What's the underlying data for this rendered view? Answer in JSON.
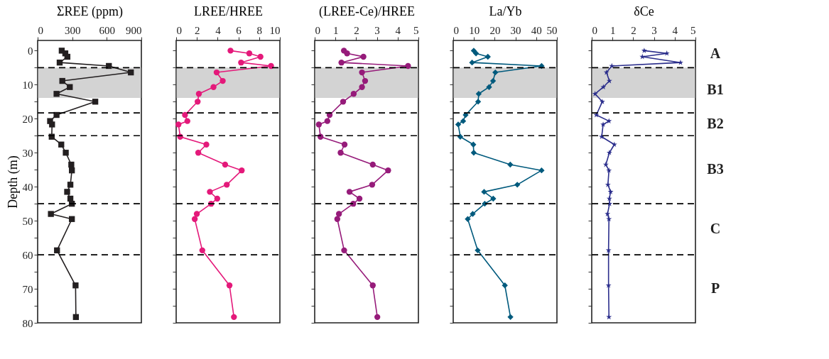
{
  "chart_data": [
    {
      "type": "line",
      "xlabel": "ΣREE (ppm)",
      "ylabel": "Depth (m)",
      "marker": "square",
      "grid": false,
      "xlim": [
        0,
        900
      ],
      "xticks": [
        0,
        300,
        600,
        900
      ],
      "ylim": [
        80,
        -3
      ],
      "yticks": [
        0,
        {
          "value": 5,
          "label": null
        },
        10,
        {
          "value": 15,
          "label": null
        },
        20,
        {
          "value": 25,
          "label": null
        },
        30,
        {
          "value": 35,
          "label": null
        },
        40,
        {
          "value": 45,
          "label": null
        },
        50,
        {
          "value": 55,
          "label": null
        },
        60,
        {
          "value": 65,
          "label": null
        },
        70,
        {
          "value": 75,
          "label": null
        },
        80
      ],
      "series": [
        {
          "color": "#231f20",
          "x": [
            209,
            240,
            258,
            191,
            618,
            809,
            214,
            279,
            164,
            500,
            164,
            108,
            125,
            122,
            205,
            244,
            292,
            297,
            284,
            256,
            284,
            297,
            115,
            297,
            168,
            329,
            332
          ],
          "values": [
            0,
            0.8,
            1.8,
            3.5,
            4.5,
            6.4,
            8.9,
            10.7,
            12.7,
            15,
            18.9,
            20.7,
            21.7,
            25.3,
            27.6,
            30,
            33.5,
            35.2,
            39.4,
            41.5,
            43.5,
            45,
            48,
            49.5,
            58.7,
            69,
            78.3
          ]
        }
      ],
      "ref_lines": [
        {
          "axis": "y",
          "value": 5,
          "line_style": "dashed"
        },
        {
          "axis": "y",
          "value": 18.3,
          "line_style": "dashed"
        },
        {
          "axis": "y",
          "value": 25,
          "line_style": "dashed"
        },
        {
          "axis": "y",
          "value": 45,
          "line_style": "dashed"
        },
        {
          "axis": "y",
          "value": 60,
          "line_style": "dashed"
        }
      ],
      "bands": [
        {
          "axis": "y",
          "from": 5,
          "to": 13.9,
          "color": "#a8a8a8"
        }
      ]
    },
    {
      "type": "line",
      "xlabel": "LREE/HREE",
      "marker": "circle",
      "grid": false,
      "tick_labels": "x",
      "xlim": [
        0,
        10
      ],
      "xticks": [
        0,
        2,
        4,
        6,
        8,
        10
      ],
      "ylim": [
        80,
        -3
      ],
      "yticks": [
        0,
        {
          "value": 5,
          "label": null
        },
        10,
        {
          "value": 15,
          "label": null
        },
        20,
        {
          "value": 25,
          "label": null
        },
        30,
        {
          "value": 35,
          "label": null
        },
        40,
        {
          "value": 45,
          "label": null
        },
        50,
        {
          "value": 55,
          "label": null
        },
        60,
        {
          "value": 65,
          "label": null
        },
        70,
        {
          "value": 75,
          "label": null
        },
        80
      ],
      "series": [
        {
          "color": "#e4197a",
          "x": [
            5.24,
            7.05,
            8.13,
            6.26,
            9.15,
            3.9,
            4.49,
            3.6,
            2.19,
            2.07,
            0.85,
            1.08,
            0.22,
            0.39,
            2.91,
            2.13,
            4.72,
            6.32,
            4.88,
            3.25,
            3.96,
            3.37,
            1.99,
            1.79,
            2.52,
            5.14,
            5.57
          ],
          "values": [
            0,
            0.8,
            1.8,
            3.5,
            4.5,
            6.4,
            8.9,
            10.7,
            12.7,
            15,
            18.9,
            20.7,
            21.7,
            25.3,
            27.6,
            30,
            33.5,
            35.2,
            39.4,
            41.5,
            43.5,
            45,
            48,
            49.5,
            58.7,
            69,
            78.3
          ]
        }
      ],
      "ref_lines": [
        {
          "axis": "y",
          "value": 5,
          "line_style": "dashed"
        },
        {
          "axis": "y",
          "value": 18.3,
          "line_style": "dashed"
        },
        {
          "axis": "y",
          "value": 25,
          "line_style": "dashed"
        },
        {
          "axis": "y",
          "value": 45,
          "line_style": "dashed"
        },
        {
          "axis": "y",
          "value": 60,
          "line_style": "dashed"
        }
      ],
      "bands": [
        {
          "axis": "y",
          "from": 5,
          "to": 13.9,
          "color": "#a8a8a8"
        }
      ]
    },
    {
      "type": "line",
      "xlabel": "(LREE-Ce)/HREE",
      "marker": "circle",
      "grid": false,
      "tick_labels": "x",
      "xlim": [
        0,
        5
      ],
      "xticks": [
        0,
        1,
        2,
        3,
        4,
        5
      ],
      "ylim": [
        80,
        -3
      ],
      "yticks": [
        0,
        {
          "value": 5,
          "label": null
        },
        10,
        {
          "value": 15,
          "label": null
        },
        20,
        {
          "value": 25,
          "label": null
        },
        30,
        {
          "value": 35,
          "label": null
        },
        40,
        {
          "value": 45,
          "label": null
        },
        50,
        {
          "value": 55,
          "label": null
        },
        60,
        {
          "value": 65,
          "label": null
        },
        70,
        {
          "value": 75,
          "label": null
        },
        80
      ],
      "series": [
        {
          "color": "#961b7a",
          "x": [
            1.41,
            1.56,
            2.35,
            1.29,
            4.5,
            2.28,
            2.43,
            2.28,
            1.88,
            1.37,
            0.72,
            0.61,
            0.2,
            0.28,
            1.44,
            1.25,
            2.8,
            3.54,
            2.77,
            1.68,
            2.16,
            1.86,
            1.17,
            1.09,
            1.42,
            2.8,
            3.02
          ],
          "values": [
            0,
            0.8,
            1.8,
            3.5,
            4.5,
            6.4,
            8.9,
            10.7,
            12.7,
            15,
            18.9,
            20.7,
            21.7,
            25.3,
            27.6,
            30,
            33.5,
            35.2,
            39.4,
            41.5,
            43.5,
            45,
            48,
            49.5,
            58.7,
            69,
            78.3
          ]
        }
      ],
      "ref_lines": [
        {
          "axis": "y",
          "value": 5,
          "line_style": "dashed"
        },
        {
          "axis": "y",
          "value": 18.3,
          "line_style": "dashed"
        },
        {
          "axis": "y",
          "value": 25,
          "line_style": "dashed"
        },
        {
          "axis": "y",
          "value": 45,
          "line_style": "dashed"
        },
        {
          "axis": "y",
          "value": 60,
          "line_style": "dashed"
        }
      ],
      "bands": [
        {
          "axis": "y",
          "from": 5,
          "to": 13.9,
          "color": "#a8a8a8"
        }
      ]
    },
    {
      "type": "line",
      "xlabel": "La/Yb",
      "marker": "diamond",
      "grid": false,
      "tick_labels": "x",
      "xlim": [
        0,
        50
      ],
      "xticks": [
        0,
        10,
        20,
        30,
        40,
        50
      ],
      "ylim": [
        80,
        -3
      ],
      "yticks": [
        0,
        {
          "value": 5,
          "label": null
        },
        10,
        {
          "value": 15,
          "label": null
        },
        20,
        {
          "value": 25,
          "label": null
        },
        30,
        {
          "value": 35,
          "label": null
        },
        40,
        {
          "value": 45,
          "label": null
        },
        50,
        {
          "value": 55,
          "label": null
        },
        60,
        {
          "value": 65,
          "label": null
        },
        70,
        {
          "value": 75,
          "label": null
        },
        80
      ],
      "series": [
        {
          "color": "#005a7d",
          "x": [
            9.9,
            11.0,
            16.7,
            9.1,
            42.6,
            20.3,
            19.2,
            17.3,
            12.3,
            12.0,
            6.0,
            4.8,
            2.4,
            3.4,
            9.7,
            9.9,
            27.5,
            42.6,
            30.9,
            14.9,
            19.3,
            15.2,
            9.4,
            7.0,
            11.8,
            24.9,
            27.6
          ],
          "values": [
            0,
            0.8,
            1.8,
            3.5,
            4.5,
            6.4,
            8.9,
            10.7,
            12.7,
            15,
            18.9,
            20.7,
            21.7,
            25.3,
            27.6,
            30,
            33.5,
            35.2,
            39.4,
            41.5,
            43.5,
            45,
            48,
            49.5,
            58.7,
            69,
            78.3
          ]
        }
      ],
      "ref_lines": [
        {
          "axis": "y",
          "value": 5,
          "line_style": "dashed"
        },
        {
          "axis": "y",
          "value": 18.3,
          "line_style": "dashed"
        },
        {
          "axis": "y",
          "value": 25,
          "line_style": "dashed"
        },
        {
          "axis": "y",
          "value": 45,
          "line_style": "dashed"
        },
        {
          "axis": "y",
          "value": 60,
          "line_style": "dashed"
        }
      ],
      "bands": [
        {
          "axis": "y",
          "from": 5,
          "to": 13.9,
          "color": "#a8a8a8"
        }
      ]
    },
    {
      "type": "line",
      "xlabel": "δCe",
      "marker": "star",
      "grid": false,
      "tick_labels": "x",
      "xlim": [
        0,
        5
      ],
      "xticks": [
        0,
        1,
        2,
        3,
        4,
        5
      ],
      "ylim": [
        80,
        -3
      ],
      "yticks": [
        0,
        {
          "value": 5,
          "label": null
        },
        10,
        {
          "value": 15,
          "label": null
        },
        20,
        {
          "value": 25,
          "label": null
        },
        30,
        {
          "value": 35,
          "label": null
        },
        40,
        {
          "value": 45,
          "label": null
        },
        50,
        {
          "value": 55,
          "label": null
        },
        60,
        {
          "value": 65,
          "label": null
        },
        70,
        {
          "value": 75,
          "label": null
        },
        80
      ],
      "series": [
        {
          "color": "#2b2e8c",
          "x": [
            2.53,
            3.62,
            2.44,
            4.28,
            0.97,
            0.71,
            0.85,
            0.56,
            0.16,
            0.51,
            0.22,
            0.83,
            0.55,
            0.48,
            1.09,
            0.85,
            0.68,
            0.83,
            0.78,
            0.91,
            0.85,
            0.86,
            0.76,
            0.83,
            0.81,
            0.81,
            0.83
          ],
          "values": [
            0,
            0.8,
            1.8,
            3.5,
            4.5,
            6.4,
            8.9,
            10.7,
            12.7,
            15,
            18.9,
            20.7,
            21.7,
            25.3,
            27.6,
            30,
            33.5,
            35.2,
            39.4,
            41.5,
            43.5,
            45,
            48,
            49.5,
            58.7,
            69,
            78.3
          ]
        }
      ],
      "ref_lines": [
        {
          "axis": "y",
          "value": 5,
          "line_style": "dashed"
        },
        {
          "axis": "y",
          "value": 18.3,
          "line_style": "dashed"
        },
        {
          "axis": "y",
          "value": 25,
          "line_style": "dashed"
        },
        {
          "axis": "y",
          "value": 45,
          "line_style": "dashed"
        },
        {
          "axis": "y",
          "value": 60,
          "line_style": "dashed"
        }
      ],
      "bands": [
        {
          "axis": "y",
          "from": 5,
          "to": 13.9,
          "color": "#a8a8a8"
        }
      ],
      "annotations": [
        "A",
        "B1",
        "B2",
        "B3",
        "C",
        "P"
      ]
    }
  ]
}
